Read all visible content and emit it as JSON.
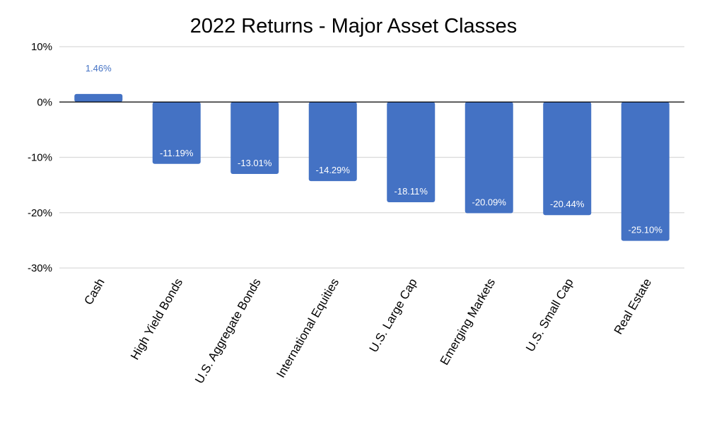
{
  "chart_data": {
    "type": "bar",
    "title": "2022 Returns - Major Asset Classes",
    "xlabel": "",
    "ylabel": "",
    "categories": [
      "Cash",
      "High Yield Bonds",
      "U.S. Aggregate Bonds",
      "International Equities",
      "U.S. Large Cap",
      "Emerging Markets",
      "U.S. Small Cap",
      "Real Estate"
    ],
    "values": [
      1.46,
      -11.19,
      -13.01,
      -14.29,
      -18.11,
      -20.09,
      -20.44,
      -25.1
    ],
    "data_labels": [
      "1.46%",
      "-11.19%",
      "-13.01%",
      "-14.29%",
      "-18.11%",
      "-20.09%",
      "-20.44%",
      "-25.10%"
    ],
    "ylim": [
      -30,
      10
    ],
    "yticks": [
      10,
      0,
      -10,
      -20,
      -30
    ],
    "ytick_labels": [
      "10%",
      "0%",
      "-10%",
      "-20%",
      "-30%"
    ],
    "grid": true,
    "legend": "none",
    "colors": {
      "bar": "#4472C4",
      "label_inside": "#FFFFFF",
      "label_outside": "#4472C4",
      "grid": "#D9D9D9",
      "zero_line": "#000000"
    }
  }
}
